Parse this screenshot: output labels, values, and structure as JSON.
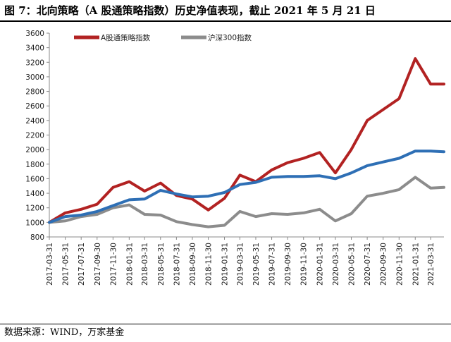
{
  "title": "图 7：北向策略（A 股通策略指数）历史净值表现，截止 2021 年 5 月 21 日",
  "source": "数据来源：WIND，万家基金",
  "chart_data": {
    "type": "line",
    "x": [
      "2017-03-31",
      "2017-05-31",
      "2017-07-31",
      "2017-09-30",
      "2017-11-30",
      "2018-01-31",
      "2018-03-31",
      "2018-05-31",
      "2018-07-31",
      "2018-09-30",
      "2018-11-30",
      "2019-01-31",
      "2019-03-31",
      "2019-05-31",
      "2019-07-31",
      "2019-09-30",
      "2019-11-30",
      "2020-01-31",
      "2020-03-31",
      "2020-05-31",
      "2020-07-31",
      "2020-09-30",
      "2020-11-30",
      "2021-01-31",
      "2021-03-31",
      "2021-05-21"
    ],
    "xticks": [
      "2017-03-31",
      "2017-05-31",
      "2017-07-31",
      "2017-09-30",
      "2017-11-30",
      "2018-01-31",
      "2018-03-31",
      "2018-05-31",
      "2018-07-31",
      "2018-09-30",
      "2018-11-30",
      "2019-01-31",
      "2019-03-31",
      "2019-05-31",
      "2019-07-31",
      "2019-09-30",
      "2019-11-30",
      "2020-01-31",
      "2020-03-31",
      "2020-05-31",
      "2020-07-31",
      "2020-09-30",
      "2020-11-30",
      "2021-01-31",
      "2021-03-31"
    ],
    "ylim": [
      800,
      3600
    ],
    "yticks": [
      800,
      1000,
      1200,
      1400,
      1600,
      1800,
      2000,
      2200,
      2400,
      2600,
      2800,
      3000,
      3200,
      3400,
      3600
    ],
    "series": [
      {
        "name": "A股通策略指数",
        "color": "#b22222",
        "legend": true,
        "values": [
          1000,
          1130,
          1180,
          1250,
          1480,
          1560,
          1430,
          1540,
          1370,
          1320,
          1170,
          1330,
          1650,
          1560,
          1720,
          1820,
          1880,
          1960,
          1680,
          2000,
          2400,
          2550,
          2700,
          3250,
          2900,
          2900
        ]
      },
      {
        "name": "沪深300指数",
        "color": "#8c8c8c",
        "legend": true,
        "values": [
          1000,
          1020,
          1080,
          1110,
          1200,
          1240,
          1110,
          1100,
          1010,
          970,
          940,
          960,
          1150,
          1080,
          1120,
          1110,
          1130,
          1180,
          1020,
          1120,
          1360,
          1400,
          1450,
          1620,
          1470,
          1480
        ]
      },
      {
        "name": "",
        "color": "#2e6fb5",
        "legend": false,
        "values": [
          1000,
          1080,
          1100,
          1150,
          1230,
          1310,
          1320,
          1440,
          1390,
          1350,
          1360,
          1410,
          1520,
          1550,
          1620,
          1630,
          1630,
          1640,
          1600,
          1680,
          1780,
          1830,
          1880,
          1980,
          1980,
          1970
        ]
      }
    ],
    "grid": false,
    "legend_position": "top-left"
  }
}
